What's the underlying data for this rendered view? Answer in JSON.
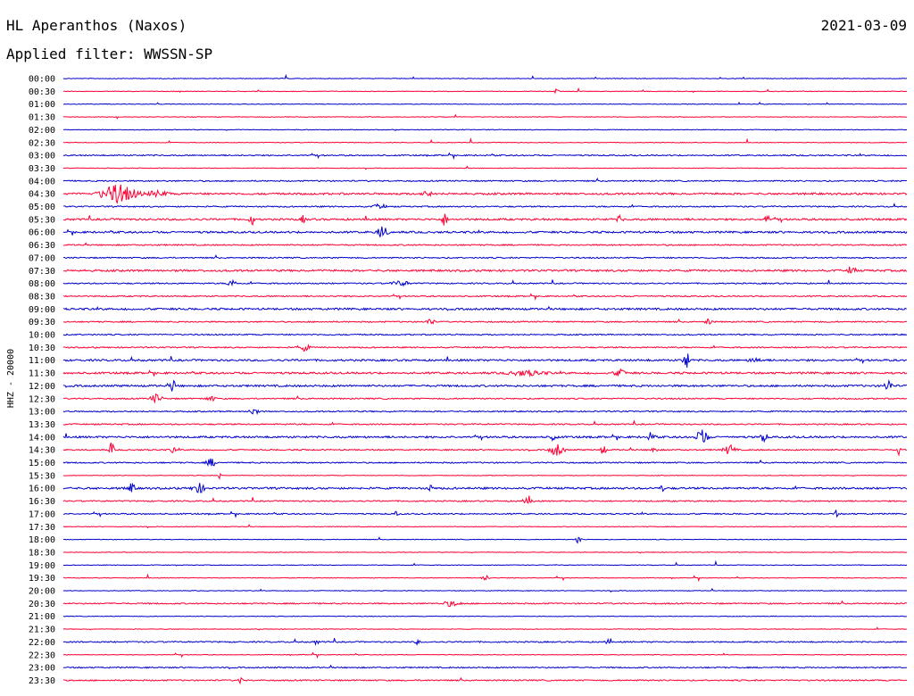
{
  "header": {
    "station": "HL Aperanthos (Naxos)",
    "date": "2021-03-09",
    "filter_label": "Applied filter: WWSSN-SP"
  },
  "colors": {
    "blue_trace": "#0000cc",
    "red_trace": "#ff0033"
  },
  "chart_data": {
    "type": "line",
    "title": "HL Aperanthos (Naxos)",
    "subtitle": "Applied filter: WWSSN-SP",
    "ylabel": "HHZ - 20000",
    "trace_colors": [
      "#0000cc",
      "#ff0033"
    ],
    "rows": [
      "00:00",
      "00:30",
      "01:00",
      "01:30",
      "02:00",
      "02:30",
      "03:00",
      "03:30",
      "04:00",
      "04:30",
      "05:00",
      "05:30",
      "06:00",
      "06:30",
      "07:00",
      "07:30",
      "08:00",
      "08:30",
      "09:00",
      "09:30",
      "10:00",
      "10:30",
      "11:00",
      "11:30",
      "12:00",
      "12:30",
      "13:00",
      "13:30",
      "14:00",
      "14:30",
      "15:00",
      "15:30",
      "16:00",
      "16:30",
      "17:00",
      "17:30",
      "18:00",
      "18:30",
      "19:00",
      "19:30",
      "20:00",
      "20:30",
      "21:00",
      "21:30",
      "22:00",
      "22:30",
      "23:00",
      "23:30"
    ],
    "noise_level": [
      1,
      1,
      1,
      1,
      1,
      1,
      2,
      1,
      2,
      3,
      2,
      3,
      3,
      2,
      2,
      3,
      2,
      2,
      3,
      2,
      2,
      2,
      3,
      3,
      3,
      2,
      2,
      2,
      3,
      2,
      2,
      1,
      3,
      2,
      2,
      1,
      1,
      1,
      1,
      1,
      1,
      2,
      1,
      1,
      2,
      1,
      2,
      2
    ],
    "events": [
      {
        "row": "00:30",
        "pos": 0.585,
        "amp": 3,
        "dur": 0.004
      },
      {
        "row": "04:30",
        "pos": 0.065,
        "amp": 11,
        "dur": 0.03
      },
      {
        "row": "04:30",
        "pos": 0.11,
        "amp": 3,
        "dur": 0.02
      },
      {
        "row": "04:30",
        "pos": 0.43,
        "amp": 3,
        "dur": 0.01
      },
      {
        "row": "05:00",
        "pos": 0.375,
        "amp": 3,
        "dur": 0.01
      },
      {
        "row": "05:30",
        "pos": 0.223,
        "amp": 9,
        "dur": 0.004
      },
      {
        "row": "05:30",
        "pos": 0.285,
        "amp": 5,
        "dur": 0.004
      },
      {
        "row": "05:30",
        "pos": 0.452,
        "amp": 10,
        "dur": 0.004
      },
      {
        "row": "05:30",
        "pos": 0.66,
        "amp": 4,
        "dur": 0.005
      },
      {
        "row": "05:30",
        "pos": 0.834,
        "amp": 7,
        "dur": 0.004
      },
      {
        "row": "06:00",
        "pos": 0.378,
        "amp": 6,
        "dur": 0.01
      },
      {
        "row": "07:30",
        "pos": 0.935,
        "amp": 7,
        "dur": 0.006
      },
      {
        "row": "08:00",
        "pos": 0.2,
        "amp": 4,
        "dur": 0.008
      },
      {
        "row": "08:00",
        "pos": 0.4,
        "amp": 3,
        "dur": 0.015
      },
      {
        "row": "09:30",
        "pos": 0.435,
        "amp": 5,
        "dur": 0.006
      },
      {
        "row": "09:30",
        "pos": 0.765,
        "amp": 5,
        "dur": 0.005
      },
      {
        "row": "10:30",
        "pos": 0.285,
        "amp": 4,
        "dur": 0.01
      },
      {
        "row": "11:00",
        "pos": 0.738,
        "amp": 12,
        "dur": 0.006
      },
      {
        "row": "11:00",
        "pos": 0.82,
        "amp": 3,
        "dur": 0.01
      },
      {
        "row": "11:30",
        "pos": 0.55,
        "amp": 3,
        "dur": 0.03
      },
      {
        "row": "11:30",
        "pos": 0.66,
        "amp": 4,
        "dur": 0.01
      },
      {
        "row": "12:00",
        "pos": 0.13,
        "amp": 9,
        "dur": 0.004
      },
      {
        "row": "12:00",
        "pos": 0.978,
        "amp": 8,
        "dur": 0.006
      },
      {
        "row": "12:30",
        "pos": 0.11,
        "amp": 5,
        "dur": 0.01
      },
      {
        "row": "12:30",
        "pos": 0.175,
        "amp": 3,
        "dur": 0.008
      },
      {
        "row": "13:00",
        "pos": 0.225,
        "amp": 4,
        "dur": 0.008
      },
      {
        "row": "14:00",
        "pos": 0.582,
        "amp": 5,
        "dur": 0.005
      },
      {
        "row": "14:00",
        "pos": 0.697,
        "amp": 6,
        "dur": 0.005
      },
      {
        "row": "14:00",
        "pos": 0.757,
        "amp": 9,
        "dur": 0.01
      },
      {
        "row": "14:00",
        "pos": 0.83,
        "amp": 6,
        "dur": 0.006
      },
      {
        "row": "14:30",
        "pos": 0.057,
        "amp": 9,
        "dur": 0.004
      },
      {
        "row": "14:30",
        "pos": 0.13,
        "amp": 4,
        "dur": 0.004
      },
      {
        "row": "14:30",
        "pos": 0.585,
        "amp": 7,
        "dur": 0.012
      },
      {
        "row": "14:30",
        "pos": 0.64,
        "amp": 8,
        "dur": 0.004
      },
      {
        "row": "14:30",
        "pos": 0.7,
        "amp": 4,
        "dur": 0.005
      },
      {
        "row": "14:30",
        "pos": 0.79,
        "amp": 6,
        "dur": 0.01
      },
      {
        "row": "14:30",
        "pos": 0.99,
        "amp": 7,
        "dur": 0.003
      },
      {
        "row": "15:00",
        "pos": 0.175,
        "amp": 5,
        "dur": 0.008
      },
      {
        "row": "15:30",
        "pos": 0.185,
        "amp": 4,
        "dur": 0.003
      },
      {
        "row": "16:00",
        "pos": 0.08,
        "amp": 5,
        "dur": 0.008
      },
      {
        "row": "16:00",
        "pos": 0.16,
        "amp": 6,
        "dur": 0.01
      },
      {
        "row": "16:00",
        "pos": 0.435,
        "amp": 4,
        "dur": 0.004
      },
      {
        "row": "16:00",
        "pos": 0.71,
        "amp": 4,
        "dur": 0.003
      },
      {
        "row": "16:30",
        "pos": 0.55,
        "amp": 3,
        "dur": 0.01
      },
      {
        "row": "17:00",
        "pos": 0.395,
        "amp": 4,
        "dur": 0.003
      },
      {
        "row": "17:00",
        "pos": 0.916,
        "amp": 4,
        "dur": 0.003
      },
      {
        "row": "18:00",
        "pos": 0.61,
        "amp": 4,
        "dur": 0.006
      },
      {
        "row": "19:30",
        "pos": 0.5,
        "amp": 3,
        "dur": 0.008
      },
      {
        "row": "20:30",
        "pos": 0.46,
        "amp": 3,
        "dur": 0.015
      },
      {
        "row": "22:00",
        "pos": 0.3,
        "amp": 3,
        "dur": 0.004
      },
      {
        "row": "22:00",
        "pos": 0.42,
        "amp": 3,
        "dur": 0.004
      },
      {
        "row": "22:00",
        "pos": 0.645,
        "amp": 3,
        "dur": 0.004
      },
      {
        "row": "23:30",
        "pos": 0.21,
        "amp": 5,
        "dur": 0.003
      }
    ]
  }
}
